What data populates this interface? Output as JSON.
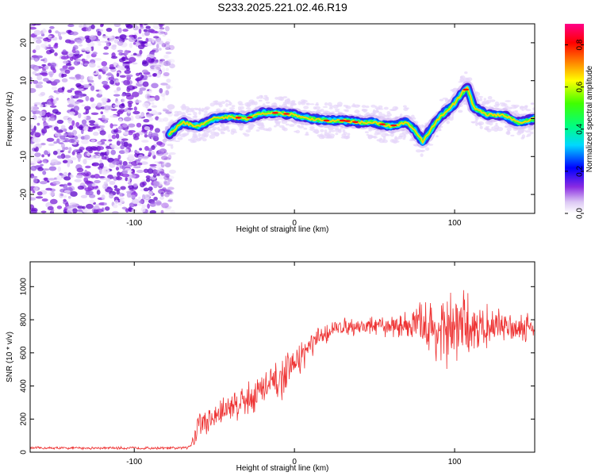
{
  "title": "S233.2025.221.02.46.R19",
  "chart_data": [
    {
      "type": "heatmap",
      "name": "spectrogram",
      "xlabel": "Height of straight line (km)",
      "ylabel": "Frequency (Hz)",
      "xlim": [
        -165,
        150
      ],
      "ylim": [
        -25,
        25
      ],
      "xticks": [
        -100,
        0,
        100
      ],
      "yticks": [
        -20,
        -10,
        0,
        10,
        20
      ],
      "xtick_labels": [
        "-100",
        "0",
        "100"
      ],
      "ytick_labels": [
        "-20",
        "-10",
        "0",
        "10",
        "20"
      ],
      "noise_region_x": [
        -165,
        -78
      ],
      "ridge": {
        "x": [
          -78,
          -70,
          -60,
          -50,
          -40,
          -30,
          -20,
          -10,
          0,
          10,
          20,
          30,
          40,
          50,
          60,
          70,
          75,
          80,
          85,
          90,
          95,
          100,
          105,
          108,
          112,
          120,
          130,
          140,
          150
        ],
        "freq": [
          -4,
          -1,
          -2,
          0,
          0.5,
          0,
          1.5,
          1.5,
          1,
          0,
          -0.5,
          -0.5,
          -1,
          -1,
          -2,
          -1,
          -3,
          -6,
          -3,
          0,
          2,
          4,
          7,
          8,
          3,
          1,
          1,
          -1,
          0
        ]
      },
      "colorbar": {
        "label": "Normalized spectral amplitude",
        "range": [
          0,
          0.9
        ],
        "ticks": [
          0.0,
          0.2,
          0.4,
          0.6,
          0.8
        ],
        "tick_labels": [
          "0.0",
          "0.2",
          "0.4",
          "0.6",
          "0.8"
        ]
      }
    },
    {
      "type": "line",
      "name": "snr",
      "color": "#ee3333",
      "xlabel": "Height of straight line (km)",
      "ylabel": "SNR (10 * v/v)",
      "xlim": [
        -165,
        150
      ],
      "ylim": [
        0,
        1150
      ],
      "xticks": [
        -100,
        0,
        100
      ],
      "yticks": [
        0,
        200,
        400,
        600,
        800,
        1000
      ],
      "xtick_labels": [
        "-100",
        "0",
        "100"
      ],
      "ytick_labels": [
        "0",
        "200",
        "400",
        "600",
        "800",
        "1000"
      ],
      "envelope": {
        "x": [
          -165,
          -70,
          -65,
          -62,
          -60,
          -55,
          -50,
          -40,
          -30,
          -20,
          -10,
          0,
          10,
          20,
          30,
          50,
          60,
          70,
          80,
          90,
          100,
          110,
          120,
          130,
          140,
          150
        ],
        "mean": [
          25,
          25,
          40,
          100,
          180,
          180,
          210,
          280,
          320,
          380,
          420,
          530,
          640,
          720,
          760,
          760,
          760,
          770,
          770,
          720,
          740,
          760,
          760,
          760,
          760,
          760
        ],
        "spread": [
          8,
          8,
          20,
          60,
          120,
          80,
          90,
          100,
          110,
          120,
          120,
          100,
          80,
          60,
          50,
          60,
          60,
          80,
          150,
          220,
          240,
          180,
          120,
          100,
          90,
          80
        ]
      }
    }
  ]
}
